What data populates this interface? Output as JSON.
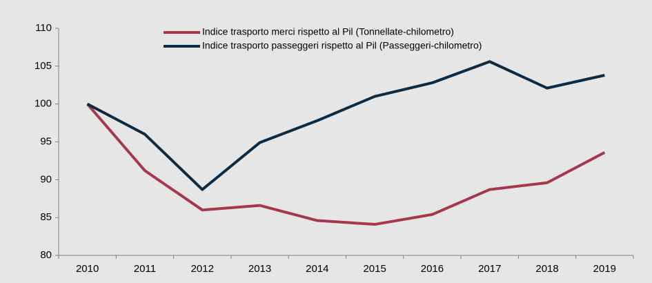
{
  "chart_data": {
    "type": "line",
    "categories": [
      "2010",
      "2011",
      "2012",
      "2013",
      "2014",
      "2015",
      "2016",
      "2017",
      "2018",
      "2019"
    ],
    "series": [
      {
        "name": "Indice trasporto merci rispetto al Pil (Tonnellate-chilometro)",
        "color": "#a5384f",
        "values": [
          100,
          91.2,
          86.0,
          86.6,
          84.6,
          84.1,
          85.4,
          88.7,
          89.6,
          93.6
        ]
      },
      {
        "name": "Indice trasporto passeggeri rispetto al Pil (Passeggeri-chilometro)",
        "color": "#0e2b44",
        "values": [
          100,
          96.0,
          88.7,
          94.9,
          97.8,
          101.0,
          102.8,
          105.6,
          102.1,
          103.8
        ]
      }
    ],
    "ylim": [
      80,
      110
    ],
    "yticks": [
      80,
      85,
      90,
      95,
      100,
      105,
      110
    ],
    "grid": false,
    "legend": "top"
  }
}
